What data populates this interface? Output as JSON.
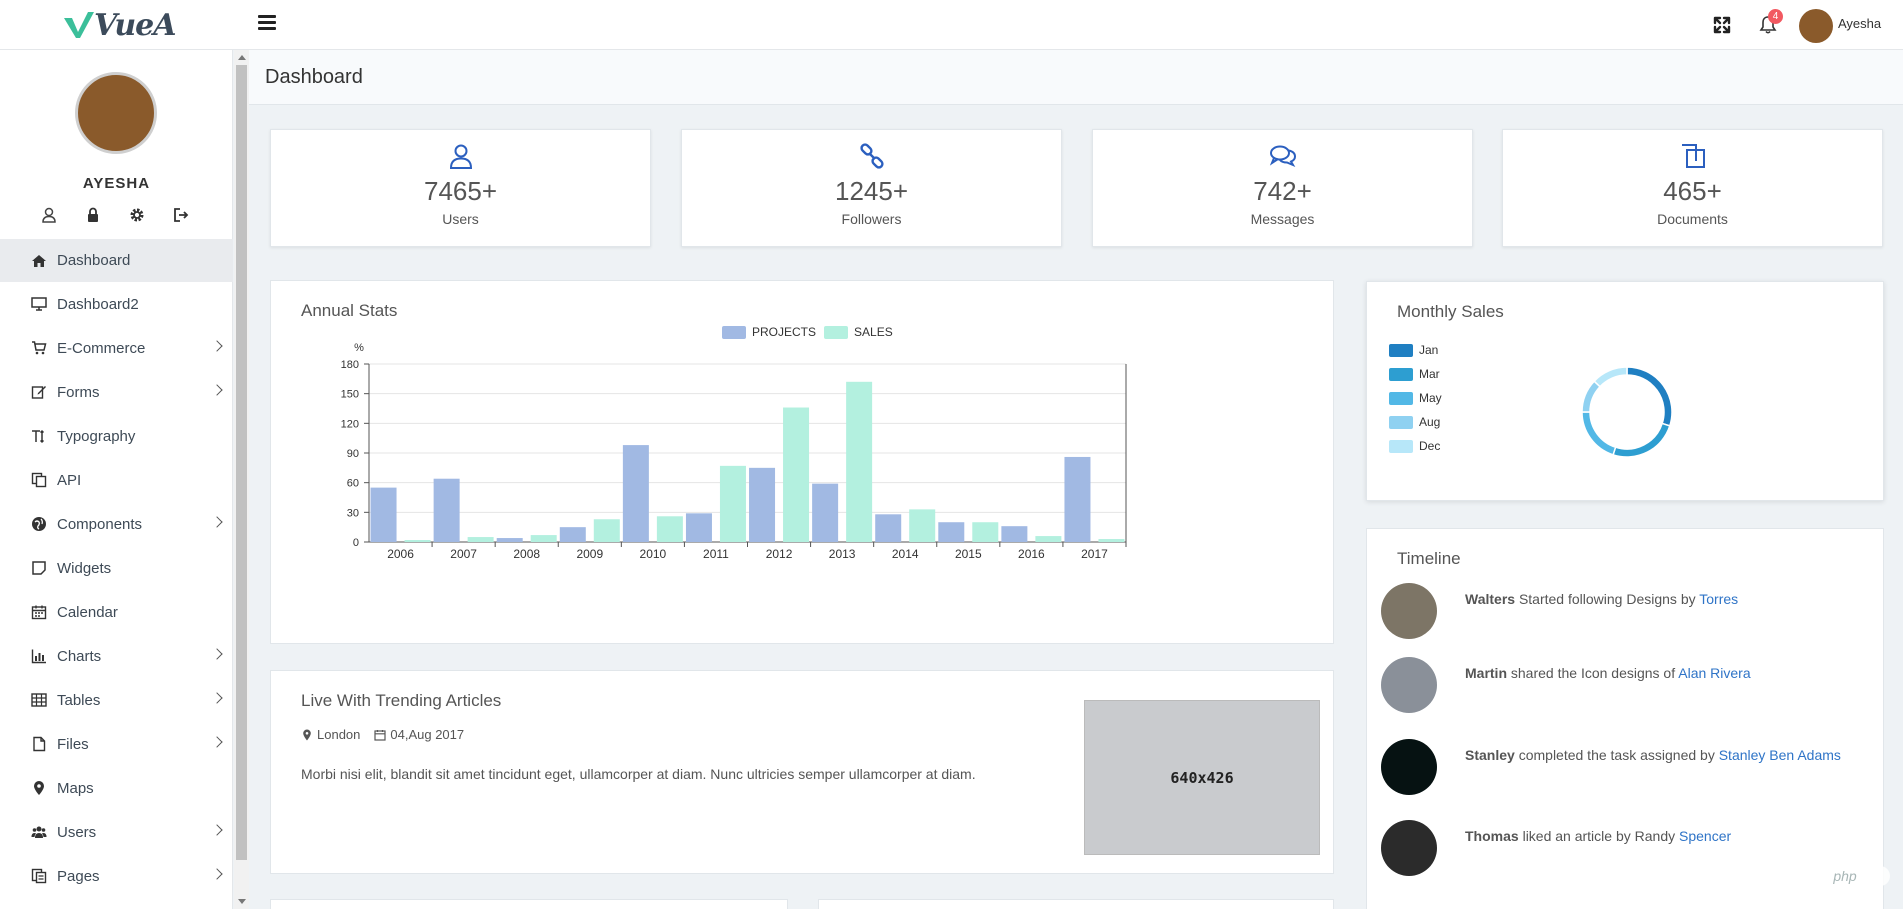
{
  "app": {
    "logo_text": "VueA"
  },
  "topbar": {
    "notification_count": "4",
    "username": "Ayesha"
  },
  "sidebar": {
    "profile_name": "AYESHA",
    "items": [
      {
        "label": "Dashboard",
        "icon": "home-icon",
        "active": true,
        "has_children": false
      },
      {
        "label": "Dashboard2",
        "icon": "monitor-icon",
        "active": false,
        "has_children": false
      },
      {
        "label": "E-Commerce",
        "icon": "cart-icon",
        "active": false,
        "has_children": true
      },
      {
        "label": "Forms",
        "icon": "edit-icon",
        "active": false,
        "has_children": true
      },
      {
        "label": "Typography",
        "icon": "text-height-icon",
        "active": false,
        "has_children": false
      },
      {
        "label": "API",
        "icon": "copy-icon",
        "active": false,
        "has_children": false
      },
      {
        "label": "Components",
        "icon": "globe-icon",
        "active": false,
        "has_children": true
      },
      {
        "label": "Widgets",
        "icon": "square-icon",
        "active": false,
        "has_children": false
      },
      {
        "label": "Calendar",
        "icon": "calendar-icon",
        "active": false,
        "has_children": false
      },
      {
        "label": "Charts",
        "icon": "bar-chart-icon",
        "active": false,
        "has_children": true
      },
      {
        "label": "Tables",
        "icon": "table-icon",
        "active": false,
        "has_children": true
      },
      {
        "label": "Files",
        "icon": "file-icon",
        "active": false,
        "has_children": true
      },
      {
        "label": "Maps",
        "icon": "map-marker-icon",
        "active": false,
        "has_children": false
      },
      {
        "label": "Users",
        "icon": "users-icon",
        "active": false,
        "has_children": true
      },
      {
        "label": "Pages",
        "icon": "pages-icon",
        "active": false,
        "has_children": true
      }
    ]
  },
  "page": {
    "title": "Dashboard"
  },
  "stats": [
    {
      "value": "7465+",
      "label": "Users",
      "icon": "user-icon"
    },
    {
      "value": "1245+",
      "label": "Followers",
      "icon": "link-icon"
    },
    {
      "value": "742+",
      "label": "Messages",
      "icon": "comments-icon"
    },
    {
      "value": "465+",
      "label": "Documents",
      "icon": "documents-icon"
    }
  ],
  "annual_stats": {
    "title": "Annual Stats"
  },
  "monthly_sales": {
    "title": "Monthly Sales"
  },
  "chart_data": [
    {
      "type": "bar",
      "title": "Annual Stats",
      "xlabel": "",
      "ylabel": "%",
      "ylim": [
        0,
        180
      ],
      "yticks": [
        0,
        30,
        60,
        90,
        120,
        150,
        180
      ],
      "categories": [
        "2006",
        "2007",
        "2008",
        "2009",
        "2010",
        "2011",
        "2012",
        "2013",
        "2014",
        "2015",
        "2016",
        "2017"
      ],
      "series": [
        {
          "name": "PROJECTS",
          "color": "#a1b9e3",
          "values": [
            55,
            64,
            4,
            15,
            98,
            29,
            75,
            59,
            28,
            20,
            16,
            86
          ]
        },
        {
          "name": "SALES",
          "color": "#b3f0df",
          "values": [
            2,
            5,
            7,
            23,
            26,
            77,
            136,
            162,
            33,
            20,
            6,
            3
          ]
        }
      ],
      "legend_position": "top",
      "grid": true
    },
    {
      "type": "pie",
      "title": "Monthly Sales",
      "labels": [
        "Jan",
        "Mar",
        "May",
        "Aug",
        "Dec"
      ],
      "values": [
        30,
        25,
        20,
        12,
        13
      ],
      "colors": [
        "#1f7fc2",
        "#2d9ed1",
        "#52b8e6",
        "#8fd1f1",
        "#b7e7f9"
      ],
      "legend_position": "left"
    }
  ],
  "article": {
    "title": "Live With Trending Articles",
    "location": "London",
    "date": "04,Aug 2017",
    "body": "Morbi nisi elit, blandit sit amet tincidunt eget, ullamcorper at diam. Nunc ultricies semper ullamcorper at diam.",
    "image_label": "640x426"
  },
  "timeline": {
    "title": "Timeline",
    "items": [
      {
        "name": "Walters",
        "text": "Started following Designs by",
        "link": "Torres",
        "avatar_color": "#7d7566"
      },
      {
        "name": "Martin",
        "text": "shared the Icon designs of",
        "link": "Alan Rivera",
        "avatar_color": "#8a9099"
      },
      {
        "name": "Stanley",
        "text": "completed the task assigned by",
        "link": "Stanley Ben Adams",
        "avatar_color": "#061212"
      },
      {
        "name": "Thomas",
        "text": "liked an article by Randy",
        "link": "Spencer",
        "avatar_color": "#2b2b2b"
      }
    ]
  },
  "watermark": "php"
}
